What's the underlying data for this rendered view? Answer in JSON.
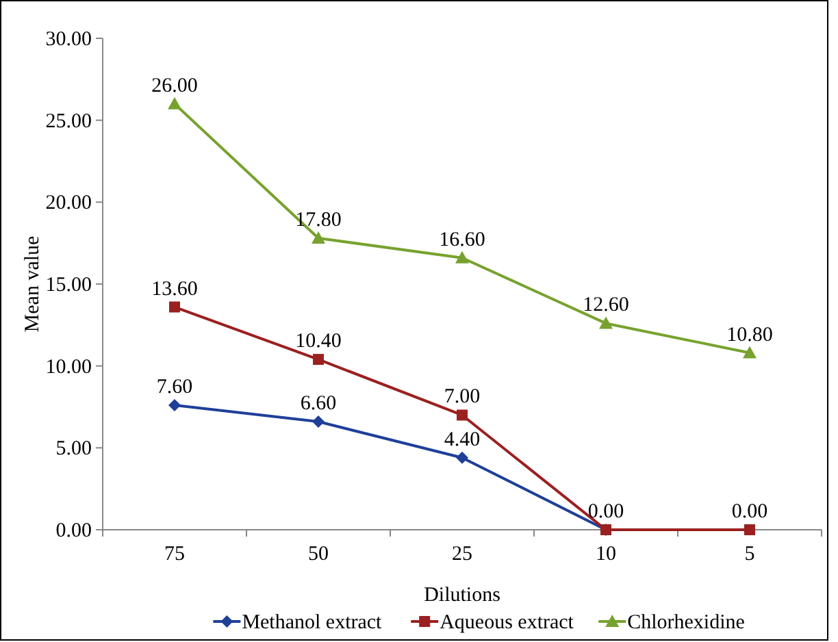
{
  "chart_data": {
    "type": "line",
    "xlabel": "Dilutions",
    "ylabel": "Mean value",
    "categories": [
      "75",
      "50",
      "25",
      "10",
      "5"
    ],
    "ylim": [
      0,
      30
    ],
    "yticks": [
      {
        "value": 0,
        "label": "0.00"
      },
      {
        "value": 5,
        "label": "5.00"
      },
      {
        "value": 10,
        "label": "10.00"
      },
      {
        "value": 15,
        "label": "15.00"
      },
      {
        "value": 20,
        "label": "20.00"
      },
      {
        "value": 25,
        "label": "25.00"
      },
      {
        "value": 30,
        "label": "30.00"
      }
    ],
    "grid": false,
    "legend": "bottom",
    "series": [
      {
        "name": "Methanol extract",
        "color": "#1f3f99",
        "marker": "diamond",
        "values": [
          7.6,
          6.6,
          4.4,
          0,
          null
        ],
        "value_labels": [
          "7.60",
          "6.60",
          "4.40",
          null,
          null
        ]
      },
      {
        "name": "Aqueous extract",
        "color": "#9b2020",
        "marker": "square",
        "values": [
          13.6,
          10.4,
          7.0,
          0,
          0
        ],
        "value_labels": [
          "13.60",
          "10.40",
          "7.00",
          "0.00",
          "0.00"
        ]
      },
      {
        "name": "Chlorhexidine",
        "color": "#77a22e",
        "marker": "triangle",
        "values": [
          26.0,
          17.8,
          16.6,
          12.6,
          10.8
        ],
        "value_labels": [
          "26.00",
          "17.80",
          "16.60",
          "12.60",
          "10.80"
        ]
      }
    ]
  }
}
